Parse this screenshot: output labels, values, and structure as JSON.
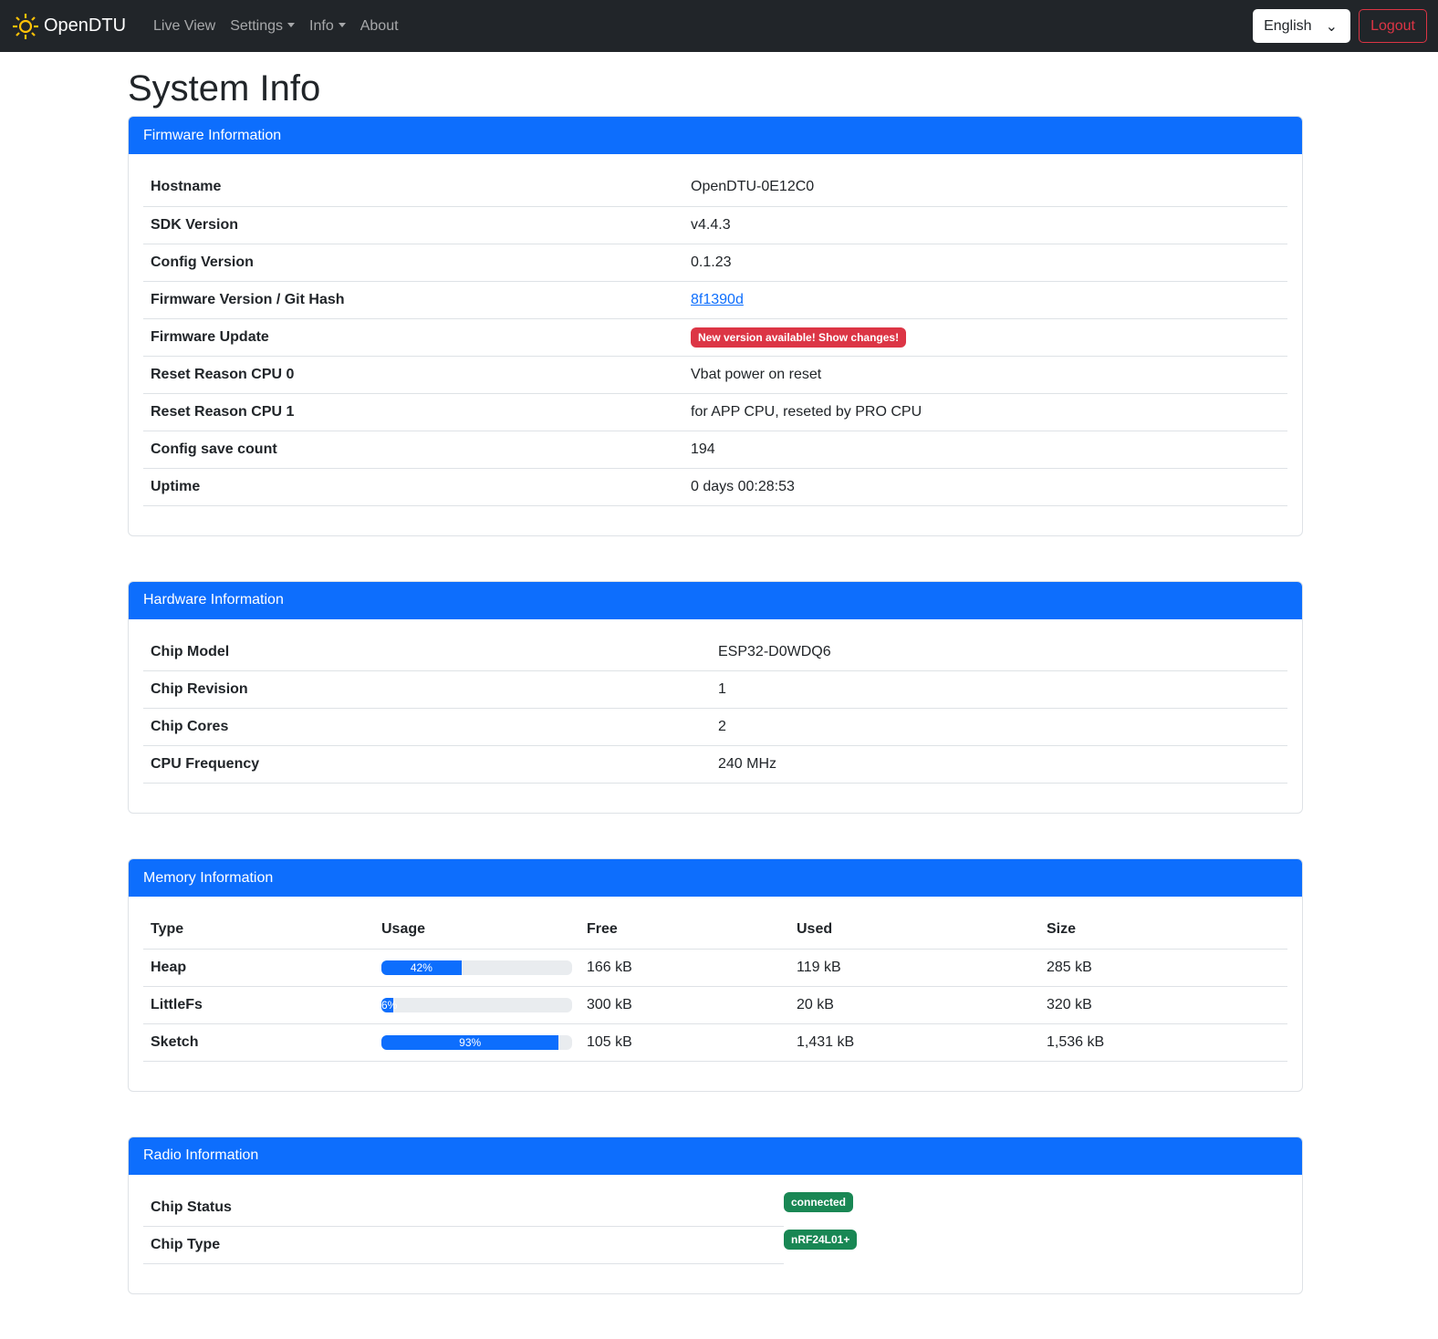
{
  "nav": {
    "brand": "OpenDTU",
    "items": [
      "Live View",
      "Settings",
      "Info",
      "About"
    ],
    "language": "English",
    "logout": "Logout"
  },
  "title": "System Info",
  "firmware": {
    "header": "Firmware Information",
    "rows": [
      {
        "label": "Hostname",
        "value": "OpenDTU-0E12C0"
      },
      {
        "label": "SDK Version",
        "value": "v4.4.3"
      },
      {
        "label": "Config Version",
        "value": "0.1.23"
      },
      {
        "label": "Firmware Version / Git Hash",
        "value": "8f1390d"
      },
      {
        "label": "Firmware Update",
        "value": "New version available! Show changes!"
      },
      {
        "label": "Reset Reason CPU 0",
        "value": "Vbat power on reset"
      },
      {
        "label": "Reset Reason CPU 1",
        "value": "for APP CPU, reseted by PRO CPU"
      },
      {
        "label": "Config save count",
        "value": "194"
      },
      {
        "label": "Uptime",
        "value": "0 days 00:28:53"
      }
    ]
  },
  "hardware": {
    "header": "Hardware Information",
    "rows": [
      {
        "label": "Chip Model",
        "value": "ESP32-D0WDQ6"
      },
      {
        "label": "Chip Revision",
        "value": "1"
      },
      {
        "label": "Chip Cores",
        "value": "2"
      },
      {
        "label": "CPU Frequency",
        "value": "240 MHz"
      }
    ]
  },
  "memory": {
    "header": "Memory Information",
    "columns": [
      "Type",
      "Usage",
      "Free",
      "Used",
      "Size"
    ],
    "rows": [
      {
        "type": "Heap",
        "usage_percent": 42,
        "usage": "42%",
        "free": "166 kB",
        "used": "119 kB",
        "size": "285 kB"
      },
      {
        "type": "LittleFs",
        "usage_percent": 6,
        "usage": "6%",
        "free": "300 kB",
        "used": "20 kB",
        "size": "320 kB"
      },
      {
        "type": "Sketch",
        "usage_percent": 93,
        "usage": "93%",
        "free": "105 kB",
        "used": "1,431 kB",
        "size": "1,536 kB"
      }
    ]
  },
  "radio": {
    "header": "Radio Information",
    "rows": [
      {
        "label": "Chip Status",
        "value": "connected"
      },
      {
        "label": "Chip Type",
        "value": "nRF24L01+"
      }
    ]
  },
  "colors": {
    "primary": "#0d6efd",
    "danger": "#dc3545",
    "success": "#198754",
    "navbar": "#212529"
  }
}
